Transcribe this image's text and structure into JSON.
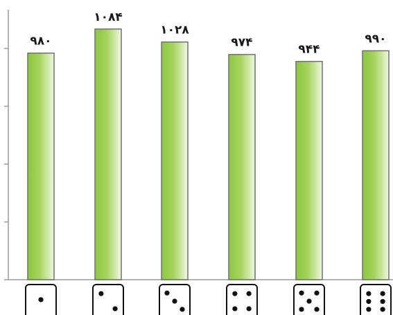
{
  "chart_data": {
    "type": "bar",
    "title": "",
    "xlabel": "",
    "ylabel": "",
    "categories": [
      "1",
      "2",
      "3",
      "4",
      "5",
      "6"
    ],
    "values": [
      980,
      1084,
      1028,
      974,
      944,
      990
    ],
    "value_labels": [
      "۹۸۰",
      "۱۰۸۴",
      "۱۰۲۸",
      "۹۷۴",
      "۹۴۴",
      "۹۹۰"
    ],
    "ylim": [
      0,
      1200
    ],
    "y_tick_marks": [
      0,
      250,
      500,
      750,
      1000
    ],
    "x_tick_images": [
      "die-face-1",
      "die-face-2",
      "die-face-3",
      "die-face-4",
      "die-face-5",
      "die-face-6"
    ],
    "grid": false,
    "colors": {
      "bar_fill_dark": "#8cc63f",
      "bar_fill_light": "#eef8e1",
      "bar_stroke": "#707070",
      "axis": "#9a9a9a",
      "label": "#1a1a1a",
      "die_border": "#111111",
      "die_pip": "#111111"
    }
  }
}
